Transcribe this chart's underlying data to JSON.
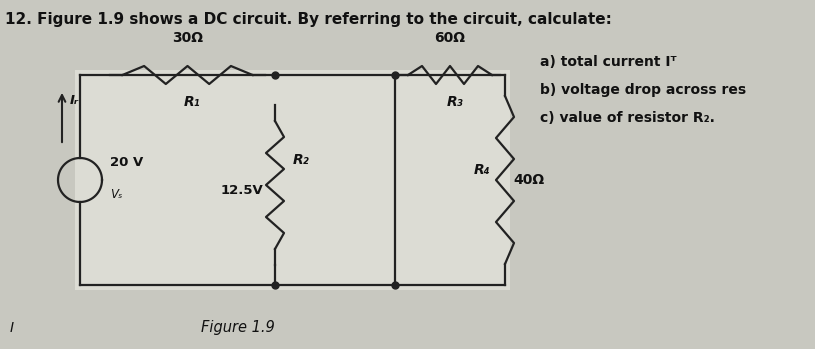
{
  "title": "12. Figure 1.9 shows a DC circuit. By referring to the circuit, calculate:",
  "figure_label": "Figure 1.9",
  "bg_color": "#c8c8c0",
  "circuit_bg": "#dcdcd4",
  "wire_color": "#222222",
  "resistor_color": "#222222",
  "text_color": "#111111",
  "annotations": {
    "R1_label": "R₁",
    "R1_ohm": "30Ω",
    "R2_label": "R₂",
    "R3_label": "R₃",
    "R3_ohm": "60Ω",
    "R4_label": "R₄",
    "R4_ohm": "40Ω",
    "voltage_label": "20 V",
    "Vs_label": "Vₛ",
    "voltage_node": "12.5V",
    "current_label": "Iᵣ"
  },
  "questions": [
    "a) total current Iᵀ",
    "b) voltage drop across res",
    "c) value of resistor R₂."
  ]
}
